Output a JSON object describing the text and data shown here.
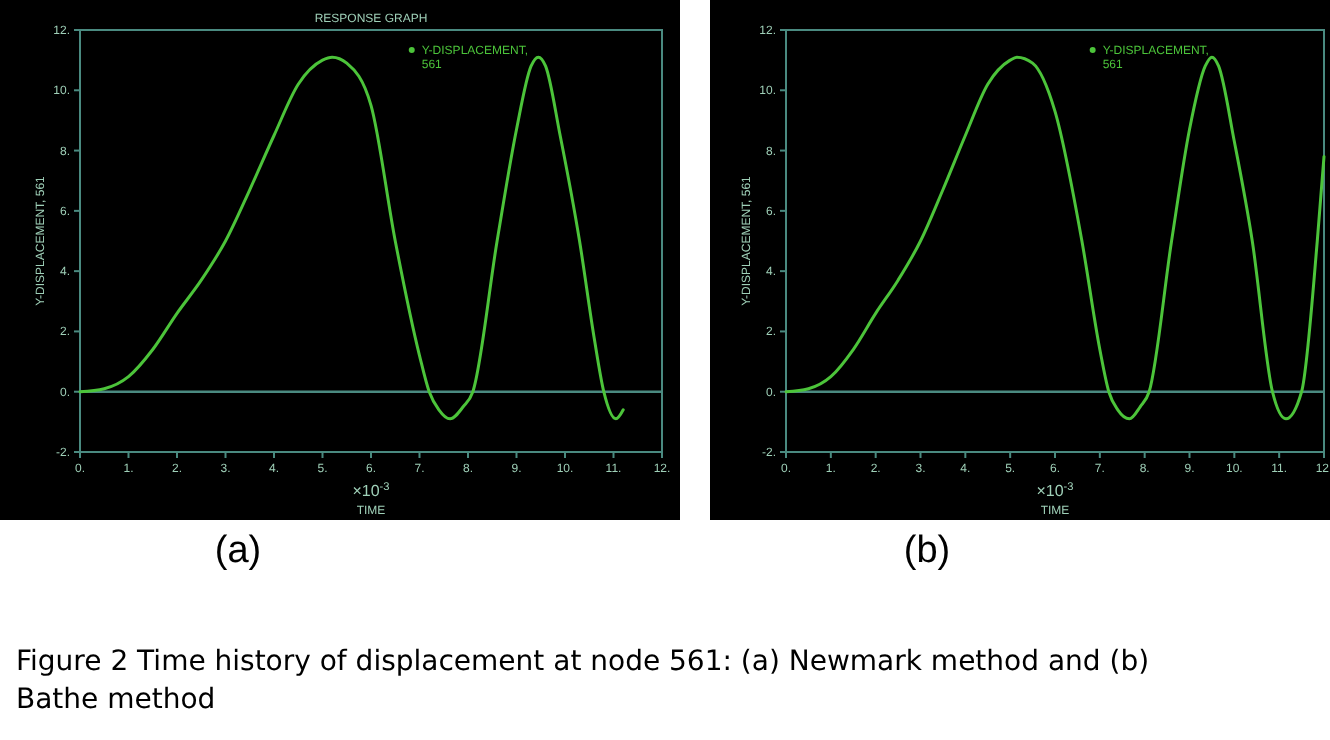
{
  "chart_data": [
    {
      "type": "line",
      "title": "RESPONSE GRAPH",
      "xlabel": "TIME",
      "ylabel": "Y-DISPLACEMENT, 561",
      "annotations": [
        "×10$^{-3}$",
        "(a)",
        "Figure 2  Time history of displacement at node 561: (a) Newmark method and (b) Bathe method"
      ],
      "series": [
        {
          "name": "Y-DISPLACEMENT, 561",
          "color": "#4cc43a",
          "x": [
            0,
            0.5,
            1,
            1.5,
            2,
            2.5,
            3,
            3.5,
            4,
            4.5,
            5,
            5.2,
            5.5,
            6,
            6.5,
            7,
            7.2,
            7.4,
            7.63,
            7.9,
            8.1,
            8.6,
            9,
            9.3,
            9.45,
            9.6,
            9.9,
            10.3,
            10.6,
            10.8,
            11.05,
            11.2
          ],
          "values": [
            0,
            0.1,
            0.5,
            1.4,
            2.6,
            3.7,
            5.0,
            6.7,
            8.5,
            10.2,
            11.0,
            11.1,
            10.9,
            9.5,
            5.0,
            1.2,
            0,
            -0.6,
            -0.9,
            -0.5,
            0,
            5.0,
            8.7,
            10.8,
            11.1,
            10.8,
            8.5,
            5.0,
            1.8,
            0,
            -0.9,
            -0.6
          ]
        }
      ],
      "xlim": [
        0,
        12
      ],
      "xticks": [
        {
          "value": 0,
          "label": "0."
        },
        {
          "value": 1,
          "label": "1."
        },
        {
          "value": 2,
          "label": "2."
        },
        {
          "value": 3,
          "label": "3."
        },
        {
          "value": 4,
          "label": "4."
        },
        {
          "value": 5,
          "label": "5."
        },
        {
          "value": 6,
          "label": "6."
        },
        {
          "value": 7,
          "label": "7."
        },
        {
          "value": 8,
          "label": "8."
        },
        {
          "value": 9,
          "label": "9."
        },
        {
          "value": 10,
          "label": "10."
        },
        {
          "value": 11,
          "label": "11."
        },
        {
          "value": 12,
          "label": "12."
        }
      ],
      "ylim": [
        -2,
        12
      ],
      "yticks": [
        {
          "value": -2,
          "label": "-2."
        },
        {
          "value": 0,
          "label": "0."
        },
        {
          "value": 2,
          "label": "2."
        },
        {
          "value": 4,
          "label": "4."
        },
        {
          "value": 6,
          "label": "6."
        },
        {
          "value": 8,
          "label": "8."
        },
        {
          "value": 10,
          "label": "10."
        },
        {
          "value": 12,
          "label": "12."
        }
      ],
      "ref_lines": [
        {
          "axis": "y",
          "value": 0,
          "color": "#4a8a80"
        }
      ],
      "legend": "top",
      "grid": false
    },
    {
      "type": "line",
      "xlabel": "TIME",
      "ylabel": "Y-DISPLACEMENT, 561",
      "annotations": [
        "×10$^{-3}$",
        "(b)"
      ],
      "series": [
        {
          "name": "Y-DISPLACEMENT, 561",
          "color": "#4cc43a",
          "x": [
            0,
            0.5,
            1,
            1.5,
            2,
            2.5,
            3,
            3.5,
            4,
            4.5,
            5,
            5.15,
            5.5,
            6,
            6.6,
            7,
            7.2,
            7.4,
            7.66,
            7.9,
            8.1,
            8.6,
            9,
            9.35,
            9.5,
            9.65,
            10,
            10.4,
            10.85,
            11.15,
            11.5,
            11.85,
            12
          ],
          "values": [
            0,
            0.1,
            0.5,
            1.4,
            2.6,
            3.7,
            5.0,
            6.7,
            8.5,
            10.2,
            11.0,
            11.1,
            10.9,
            9.3,
            5.0,
            1.4,
            0,
            -0.6,
            -0.9,
            -0.5,
            0,
            5.0,
            8.7,
            10.8,
            11.1,
            10.8,
            8.3,
            5.0,
            0,
            -0.9,
            0,
            5.0,
            7.8
          ]
        }
      ],
      "xlim": [
        0,
        12
      ],
      "xticks": [
        {
          "value": 0,
          "label": "0."
        },
        {
          "value": 1,
          "label": "1."
        },
        {
          "value": 2,
          "label": "2."
        },
        {
          "value": 3,
          "label": "3."
        },
        {
          "value": 4,
          "label": "4."
        },
        {
          "value": 5,
          "label": "5."
        },
        {
          "value": 6,
          "label": "6."
        },
        {
          "value": 7,
          "label": "7."
        },
        {
          "value": 8,
          "label": "8."
        },
        {
          "value": 9,
          "label": "9."
        },
        {
          "value": 10,
          "label": "10."
        },
        {
          "value": 11,
          "label": "11."
        },
        {
          "value": 12,
          "label": "12."
        }
      ],
      "ylim": [
        -2,
        12
      ],
      "yticks": [
        {
          "value": -2,
          "label": "-2."
        },
        {
          "value": 0,
          "label": "0."
        },
        {
          "value": 2,
          "label": "2."
        },
        {
          "value": 4,
          "label": "4."
        },
        {
          "value": 6,
          "label": "6."
        },
        {
          "value": 8,
          "label": "8."
        },
        {
          "value": 10,
          "label": "10."
        },
        {
          "value": 12,
          "label": "12."
        }
      ],
      "ref_lines": [
        {
          "axis": "y",
          "value": 0,
          "color": "#4a8a80"
        }
      ],
      "legend": "top",
      "grid": false
    }
  ]
}
